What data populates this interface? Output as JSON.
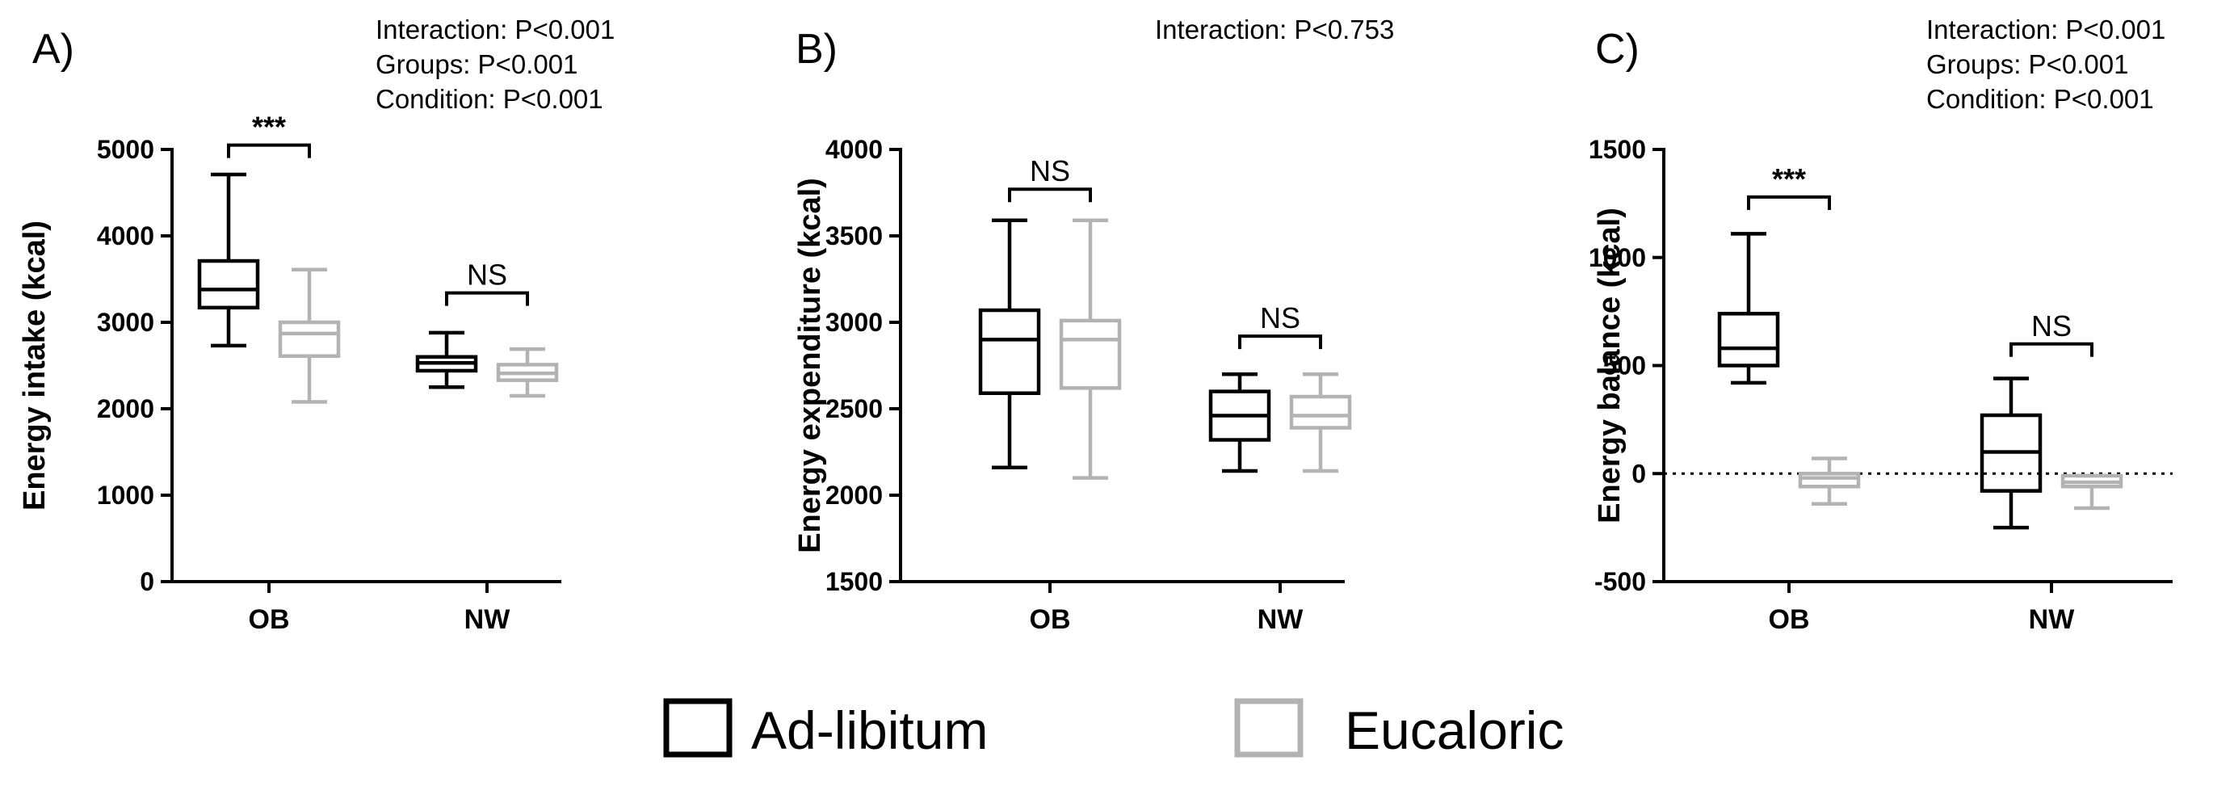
{
  "legend": {
    "items": [
      {
        "label": "Ad-libitum",
        "color": "#000000"
      },
      {
        "label": "Eucaloric",
        "color": "#b3b3b3"
      }
    ]
  },
  "chart_data": [
    {
      "type": "boxplot",
      "panel_label": "A)",
      "ylabel": "Energy intake (kcal)",
      "ylim": [
        0,
        5000
      ],
      "yticks": [
        0,
        1000,
        2000,
        3000,
        4000,
        5000
      ],
      "categories": [
        "OB",
        "NW"
      ],
      "stats": [
        "Interaction: P<0.001",
        "Groups: P<0.001",
        "Condition: P<0.001"
      ],
      "series": [
        {
          "name": "Ad-libitum",
          "color": "#000000",
          "boxes": [
            {
              "min": 2730,
              "q1": 3170,
              "median": 3380,
              "q3": 3710,
              "max": 4710
            },
            {
              "min": 2250,
              "q1": 2440,
              "median": 2530,
              "q3": 2600,
              "max": 2880
            }
          ]
        },
        {
          "name": "Eucaloric",
          "color": "#b3b3b3",
          "boxes": [
            {
              "min": 2080,
              "q1": 2610,
              "median": 2870,
              "q3": 3000,
              "max": 3610
            },
            {
              "min": 2150,
              "q1": 2330,
              "median": 2410,
              "q3": 2510,
              "max": 2690
            }
          ]
        }
      ],
      "comparisons": [
        {
          "category": "OB",
          "label": "***",
          "y": 5050
        },
        {
          "category": "NW",
          "label": "NS",
          "y": 3340
        }
      ]
    },
    {
      "type": "boxplot",
      "panel_label": "B)",
      "ylabel": "Energy expenditure (kcal)",
      "ylim": [
        1500,
        4000
      ],
      "yticks": [
        1500,
        2000,
        2500,
        3000,
        3500,
        4000
      ],
      "categories": [
        "OB",
        "NW"
      ],
      "stats": [
        "Interaction: P<0.753"
      ],
      "series": [
        {
          "name": "Ad-libitum",
          "color": "#000000",
          "boxes": [
            {
              "min": 2160,
              "q1": 2590,
              "median": 2900,
              "q3": 3070,
              "max": 3590
            },
            {
              "min": 2140,
              "q1": 2320,
              "median": 2460,
              "q3": 2600,
              "max": 2700
            }
          ]
        },
        {
          "name": "Eucaloric",
          "color": "#b3b3b3",
          "boxes": [
            {
              "min": 2100,
              "q1": 2620,
              "median": 2900,
              "q3": 3010,
              "max": 3590
            },
            {
              "min": 2140,
              "q1": 2390,
              "median": 2460,
              "q3": 2570,
              "max": 2700
            }
          ]
        }
      ],
      "comparisons": [
        {
          "category": "OB",
          "label": "NS",
          "y": 3770
        },
        {
          "category": "NW",
          "label": "NS",
          "y": 2920
        }
      ]
    },
    {
      "type": "boxplot",
      "panel_label": "C)",
      "ylabel": "Energy balance (kcal)",
      "ylim": [
        -500,
        1500
      ],
      "yticks": [
        -500,
        0,
        500,
        1000,
        1500
      ],
      "categories": [
        "OB",
        "NW"
      ],
      "stats": [
        "Interaction: P<0.001",
        "Groups: P<0.001",
        "Condition: P<0.001"
      ],
      "reference_line": 0,
      "series": [
        {
          "name": "Ad-libitum",
          "color": "#000000",
          "boxes": [
            {
              "min": 420,
              "q1": 500,
              "median": 580,
              "q3": 740,
              "max": 1110
            },
            {
              "min": -250,
              "q1": -80,
              "median": 100,
              "q3": 270,
              "max": 440
            }
          ]
        },
        {
          "name": "Eucaloric",
          "color": "#b3b3b3",
          "boxes": [
            {
              "min": -140,
              "q1": -60,
              "median": -20,
              "q3": 0,
              "max": 70
            },
            {
              "min": -160,
              "q1": -60,
              "median": -40,
              "q3": -10,
              "max": -10
            }
          ]
        }
      ],
      "comparisons": [
        {
          "category": "OB",
          "label": "***",
          "y": 1280
        },
        {
          "category": "NW",
          "label": "NS",
          "y": 600
        }
      ]
    }
  ]
}
